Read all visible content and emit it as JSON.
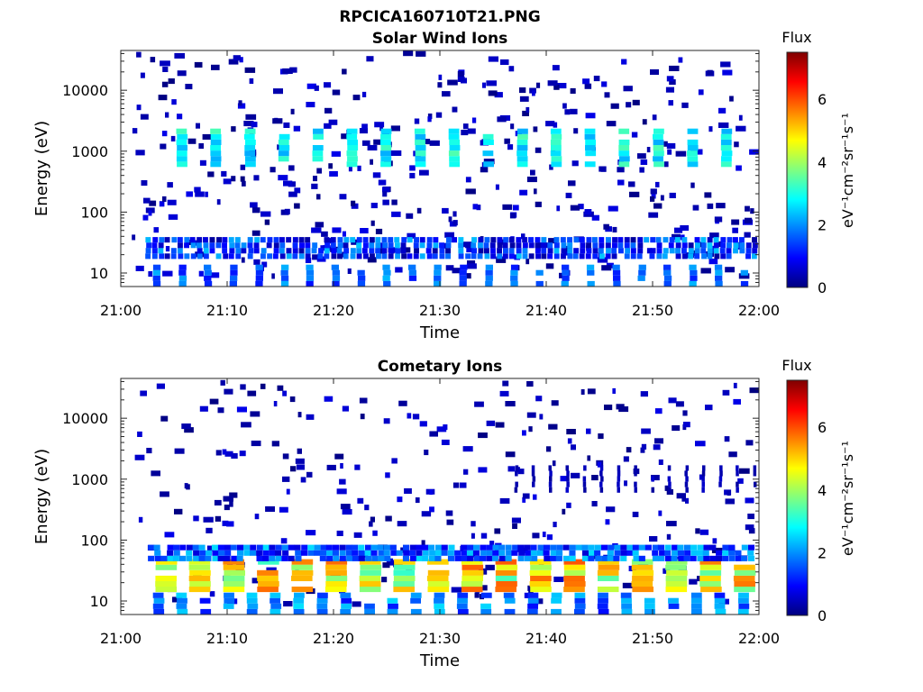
{
  "page_title": "RPCICA160710T21.PNG",
  "chart_data": [
    {
      "type": "heatmap",
      "title": "Solar Wind Ions",
      "xlabel": "Time",
      "ylabel": "Energy (eV)",
      "x_ticks": [
        "21:00",
        "21:10",
        "21:20",
        "21:30",
        "21:40",
        "21:50",
        "22:00"
      ],
      "x_range": [
        "21:00",
        "22:00"
      ],
      "y_scale": "log",
      "y_ticks": [
        10,
        100,
        1000,
        10000
      ],
      "y_tick_labels": [
        "10",
        "100",
        "1000",
        "10000"
      ],
      "y_range": [
        6,
        45000
      ],
      "colorbar": {
        "title": "Flux",
        "label": "eV⁻¹cm⁻²sr⁻¹s⁻¹",
        "range": [
          0,
          7.5
        ],
        "ticks": [
          "0",
          "2",
          "4",
          "6"
        ],
        "colormap": "jet"
      },
      "seed": 7,
      "bands": [
        {
          "emin": 550,
          "emax": 2000,
          "tstart": 5.2,
          "tend": 59.5,
          "dur": 1.0,
          "period": 3.2,
          "vmin": 2.2,
          "vmax": 3.4
        },
        {
          "emin": 17,
          "emax": 38,
          "tstart": 2.3,
          "tend": 59.8,
          "dur": 0.5,
          "period": 0.6,
          "vmin": 0.2,
          "vmax": 2.4
        },
        {
          "emin": 6,
          "emax": 12,
          "tstart": 3.0,
          "tend": 59.5,
          "dur": 0.7,
          "period": 2.4,
          "vmin": 1.0,
          "vmax": 2.3
        }
      ],
      "noise_count": 420,
      "noise_vmax": 0.8
    },
    {
      "type": "heatmap",
      "title": "Cometary Ions",
      "xlabel": "Time",
      "ylabel": "Energy (eV)",
      "x_ticks": [
        "21:00",
        "21:10",
        "21:20",
        "21:30",
        "21:40",
        "21:50",
        "22:00"
      ],
      "x_range": [
        "21:00",
        "22:00"
      ],
      "y_scale": "log",
      "y_ticks": [
        10,
        100,
        1000,
        10000
      ],
      "y_tick_labels": [
        "10",
        "100",
        "1000",
        "10000"
      ],
      "y_range": [
        6,
        45000
      ],
      "colorbar": {
        "title": "Flux",
        "label": "eV⁻¹cm⁻²sr⁻¹s⁻¹",
        "range": [
          0,
          7.5
        ],
        "ticks": [
          "0",
          "2",
          "4",
          "6"
        ],
        "colormap": "jet"
      },
      "seed": 19,
      "bands": [
        {
          "emin": 14,
          "emax": 45,
          "tstart": 3.2,
          "tend": 59.8,
          "dur": 2.0,
          "period": 3.2,
          "vmin": 3.2,
          "vmax": 6.0
        },
        {
          "emin": 45,
          "emax": 70,
          "tstart": 2.5,
          "tend": 59.8,
          "dur": 0.6,
          "period": 0.6,
          "vmin": 0.6,
          "vmax": 2.6
        },
        {
          "emin": 6,
          "emax": 13,
          "tstart": 3.0,
          "tend": 59.5,
          "dur": 1.0,
          "period": 2.2,
          "vmin": 1.0,
          "vmax": 2.6
        },
        {
          "emin": 600,
          "emax": 1400,
          "tstart": 37.0,
          "tend": 59.5,
          "dur": 0.3,
          "period": 1.6,
          "vmin": 0.2,
          "vmax": 0.6
        }
      ],
      "noise_count": 300,
      "noise_vmax": 0.8
    }
  ]
}
